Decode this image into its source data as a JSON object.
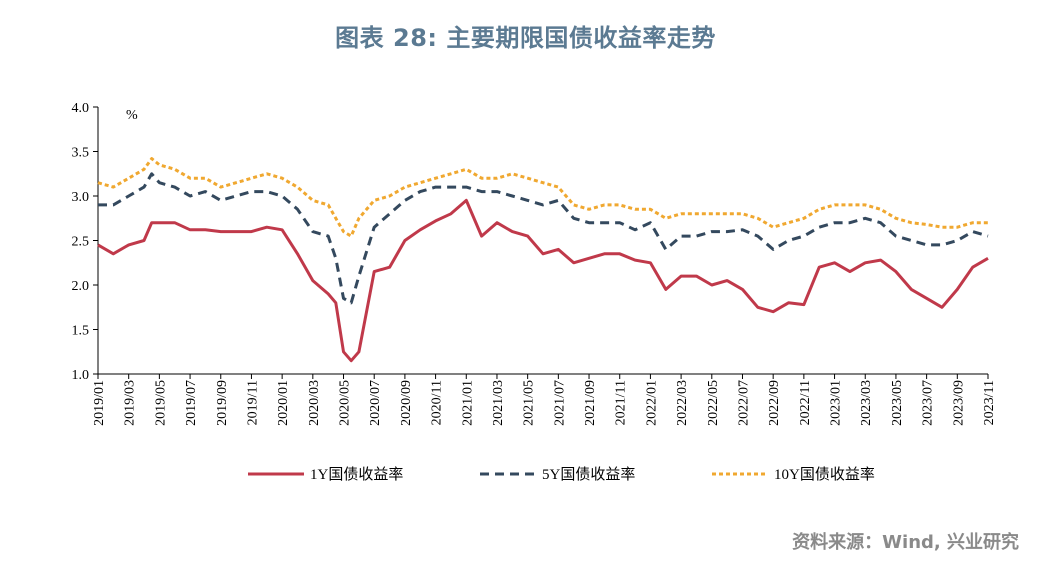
{
  "title": "图表 28: 主要期限国债收益率走势",
  "source": "资料来源：Wind, 兴业研究",
  "chart_data": {
    "type": "line",
    "ylabel": "%",
    "ylim": [
      1.0,
      4.0
    ],
    "yticks": [
      "4.0",
      "3.5",
      "3.0",
      "2.5",
      "2.0",
      "1.5",
      "1.0"
    ],
    "xticks": [
      "2019/01",
      "2019/03",
      "2019/05",
      "2019/07",
      "2019/09",
      "2019/11",
      "2020/01",
      "2020/03",
      "2020/05",
      "2020/07",
      "2020/09",
      "2020/11",
      "2021/01",
      "2021/03",
      "2021/05",
      "2021/07",
      "2021/09",
      "2021/11",
      "2022/01",
      "2022/03",
      "2022/05",
      "2022/07",
      "2022/09",
      "2022/11",
      "2023/01",
      "2023/03",
      "2023/05",
      "2023/07",
      "2023/09",
      "2023/11"
    ],
    "x": [
      0,
      1,
      2,
      3,
      3.5,
      4,
      5,
      6,
      7,
      8,
      9,
      10,
      11,
      12,
      13,
      14,
      15,
      15.5,
      16,
      16.5,
      17,
      18,
      19,
      20,
      21,
      22,
      23,
      24,
      25,
      26,
      27,
      28,
      29,
      30,
      31,
      32,
      33,
      34,
      35,
      36,
      37,
      38,
      39,
      40,
      41,
      42,
      43,
      44,
      45,
      46,
      47,
      48,
      49,
      50,
      51,
      52,
      53,
      54,
      55,
      56,
      57,
      58
    ],
    "series": [
      {
        "name": "1Y国债收益率",
        "color": "#c0394a",
        "dash": "solid",
        "values": [
          2.45,
          2.35,
          2.45,
          2.5,
          2.7,
          2.7,
          2.7,
          2.62,
          2.62,
          2.6,
          2.6,
          2.6,
          2.65,
          2.62,
          2.35,
          2.05,
          1.9,
          1.8,
          1.25,
          1.15,
          1.25,
          2.15,
          2.2,
          2.5,
          2.62,
          2.72,
          2.8,
          2.95,
          2.55,
          2.7,
          2.6,
          2.55,
          2.35,
          2.4,
          2.25,
          2.3,
          2.35,
          2.35,
          2.28,
          2.25,
          1.95,
          2.1,
          2.1,
          2.0,
          2.05,
          1.95,
          1.75,
          1.7,
          1.8,
          1.78,
          2.2,
          2.25,
          2.15,
          2.25,
          2.28,
          2.15,
          1.95,
          1.85,
          1.75,
          1.95,
          2.2,
          2.3
        ]
      },
      {
        "name": "5Y国债收益率",
        "color": "#34495e",
        "dash": "dashed",
        "values": [
          2.9,
          2.9,
          3.0,
          3.1,
          3.25,
          3.15,
          3.1,
          3.0,
          3.05,
          2.95,
          3.0,
          3.05,
          3.05,
          3.0,
          2.85,
          2.6,
          2.55,
          2.3,
          1.85,
          1.8,
          2.1,
          2.65,
          2.8,
          2.95,
          3.05,
          3.1,
          3.1,
          3.1,
          3.05,
          3.05,
          3.0,
          2.95,
          2.9,
          2.95,
          2.75,
          2.7,
          2.7,
          2.7,
          2.62,
          2.7,
          2.4,
          2.55,
          2.55,
          2.6,
          2.6,
          2.62,
          2.55,
          2.4,
          2.5,
          2.55,
          2.65,
          2.7,
          2.7,
          2.75,
          2.7,
          2.55,
          2.5,
          2.45,
          2.45,
          2.5,
          2.6,
          2.55
        ]
      },
      {
        "name": "10Y国债收益率",
        "color": "#f0a830",
        "dash": "dotted",
        "values": [
          3.15,
          3.1,
          3.2,
          3.3,
          3.42,
          3.35,
          3.3,
          3.2,
          3.2,
          3.1,
          3.15,
          3.2,
          3.25,
          3.2,
          3.1,
          2.95,
          2.9,
          2.75,
          2.6,
          2.55,
          2.75,
          2.95,
          3.0,
          3.1,
          3.15,
          3.2,
          3.25,
          3.3,
          3.2,
          3.2,
          3.25,
          3.2,
          3.15,
          3.1,
          2.9,
          2.85,
          2.9,
          2.9,
          2.85,
          2.85,
          2.75,
          2.8,
          2.8,
          2.8,
          2.8,
          2.8,
          2.75,
          2.65,
          2.7,
          2.75,
          2.85,
          2.9,
          2.9,
          2.9,
          2.85,
          2.75,
          2.7,
          2.68,
          2.65,
          2.65,
          2.7,
          2.7
        ]
      }
    ],
    "legend_position": "bottom",
    "grid": false
  }
}
